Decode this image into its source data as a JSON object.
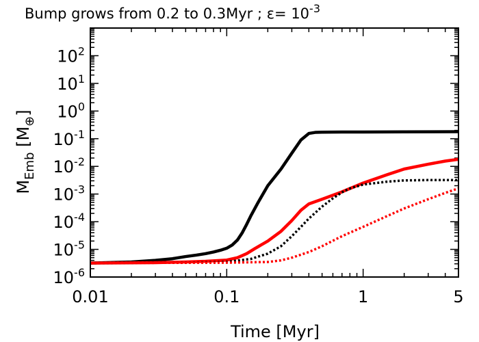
{
  "chart_data": {
    "type": "line",
    "title": {
      "prefix": "Bump grows from 0.2 to 0.3Myr ; ε= 10",
      "exponent": "-3"
    },
    "xlabel": "Time [Myr]",
    "ylabel": {
      "main": "M",
      "sub": "Emb",
      "unit_open": " [M",
      "unit_sub": "⊕",
      "unit_close": "]"
    },
    "xscale": "log",
    "yscale": "log",
    "xlim": [
      0.01,
      5
    ],
    "ylim": [
      1e-06,
      1000
    ],
    "x_ticks": [
      {
        "value": 0.01,
        "label": "0.01"
      },
      {
        "value": 0.1,
        "label": "0.1"
      },
      {
        "value": 1,
        "label": "1"
      },
      {
        "value": 5,
        "label": "5"
      }
    ],
    "y_ticks": [
      {
        "value": 1e-06,
        "base": "10",
        "exp": "-6"
      },
      {
        "value": 1e-05,
        "base": "10",
        "exp": "-5"
      },
      {
        "value": 0.0001,
        "base": "10",
        "exp": "-4"
      },
      {
        "value": 0.001,
        "base": "10",
        "exp": "-3"
      },
      {
        "value": 0.01,
        "base": "10",
        "exp": "-2"
      },
      {
        "value": 0.1,
        "base": "10",
        "exp": "-1"
      },
      {
        "value": 1,
        "base": "10",
        "exp": "0"
      },
      {
        "value": 10,
        "base": "10",
        "exp": "1"
      },
      {
        "value": 100,
        "base": "10",
        "exp": "2"
      }
    ],
    "series": [
      {
        "name": "black-solid",
        "color": "#000000",
        "style": "solid",
        "points": [
          [
            0.01,
            3.2e-06
          ],
          [
            0.02,
            3.5e-06
          ],
          [
            0.03,
            4e-06
          ],
          [
            0.04,
            4.6e-06
          ],
          [
            0.05,
            5.5e-06
          ],
          [
            0.06,
            6.2e-06
          ],
          [
            0.07,
            7e-06
          ],
          [
            0.08,
            8e-06
          ],
          [
            0.09,
            9.3e-06
          ],
          [
            0.1,
            1.1e-05
          ],
          [
            0.11,
            1.45e-05
          ],
          [
            0.12,
            2.2e-05
          ],
          [
            0.13,
            4e-05
          ],
          [
            0.14,
            8e-05
          ],
          [
            0.15,
            0.00016
          ],
          [
            0.17,
            0.0005
          ],
          [
            0.2,
            0.002
          ],
          [
            0.25,
            0.008
          ],
          [
            0.3,
            0.03
          ],
          [
            0.35,
            0.09
          ],
          [
            0.4,
            0.155
          ],
          [
            0.45,
            0.17
          ],
          [
            0.5,
            0.172
          ],
          [
            0.7,
            0.174
          ],
          [
            1,
            0.175
          ],
          [
            2,
            0.177
          ],
          [
            5,
            0.18
          ]
        ]
      },
      {
        "name": "red-solid",
        "color": "#ff0000",
        "style": "solid",
        "points": [
          [
            0.01,
            3.2e-06
          ],
          [
            0.03,
            3.3e-06
          ],
          [
            0.05,
            3.5e-06
          ],
          [
            0.07,
            3.7e-06
          ],
          [
            0.1,
            4.1e-06
          ],
          [
            0.12,
            5e-06
          ],
          [
            0.14,
            7e-06
          ],
          [
            0.16,
            1.05e-05
          ],
          [
            0.2,
            2e-05
          ],
          [
            0.25,
            4.5e-05
          ],
          [
            0.3,
            0.00011
          ],
          [
            0.35,
            0.00026
          ],
          [
            0.4,
            0.00044
          ],
          [
            0.5,
            0.00065
          ],
          [
            0.7,
            0.0012
          ],
          [
            1,
            0.0025
          ],
          [
            1.5,
            0.005
          ],
          [
            2,
            0.008
          ],
          [
            3,
            0.012
          ],
          [
            4,
            0.0155
          ],
          [
            5,
            0.018
          ]
        ]
      },
      {
        "name": "black-dotted",
        "color": "#000000",
        "style": "dotted",
        "points": [
          [
            0.01,
            3.2e-06
          ],
          [
            0.05,
            3.3e-06
          ],
          [
            0.1,
            3.5e-06
          ],
          [
            0.15,
            4.5e-06
          ],
          [
            0.2,
            7e-06
          ],
          [
            0.25,
            1.3e-05
          ],
          [
            0.3,
            3e-05
          ],
          [
            0.35,
            6.5e-05
          ],
          [
            0.4,
            0.00013
          ],
          [
            0.5,
            0.00035
          ],
          [
            0.6,
            0.0007
          ],
          [
            0.7,
            0.00115
          ],
          [
            0.8,
            0.0016
          ],
          [
            1,
            0.0022
          ],
          [
            1.5,
            0.0028
          ],
          [
            2,
            0.0031
          ],
          [
            3,
            0.0032
          ],
          [
            5,
            0.0032
          ]
        ]
      },
      {
        "name": "red-dotted",
        "color": "#ff0000",
        "style": "dotted",
        "points": [
          [
            0.01,
            3.2e-06
          ],
          [
            0.1,
            3.3e-06
          ],
          [
            0.2,
            3.5e-06
          ],
          [
            0.25,
            4e-06
          ],
          [
            0.3,
            5e-06
          ],
          [
            0.4,
            8e-06
          ],
          [
            0.5,
            1.3e-05
          ],
          [
            0.7,
            3e-05
          ],
          [
            1,
            6.5e-05
          ],
          [
            1.5,
            0.00016
          ],
          [
            2,
            0.0003
          ],
          [
            3,
            0.00065
          ],
          [
            4,
            0.0011
          ],
          [
            5,
            0.0016
          ]
        ]
      }
    ]
  }
}
